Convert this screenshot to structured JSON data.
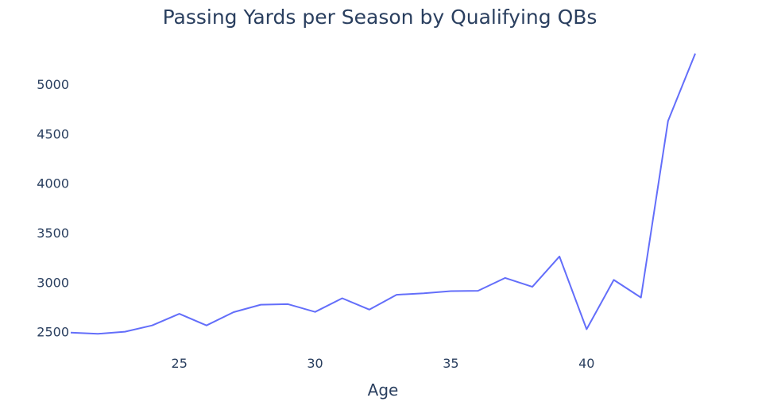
{
  "chart_data": {
    "type": "line",
    "title": "Passing Yards per Season by Qualifying QBs",
    "xlabel": "Age",
    "ylabel": "",
    "xlim": [
      21,
      44
    ],
    "ylim": [
      2320,
      5370
    ],
    "x_ticks": [
      25,
      30,
      35,
      40
    ],
    "y_ticks": [
      2500,
      3000,
      3500,
      4000,
      4500,
      5000
    ],
    "grid": false,
    "line_color": "#636efa",
    "series": [
      {
        "x": [
          21,
          22,
          23,
          24,
          25,
          26,
          27,
          28,
          29,
          30,
          31,
          32,
          33,
          34,
          35,
          36,
          37,
          38,
          39,
          40,
          41,
          42,
          43,
          44
        ],
        "values": [
          2490,
          2478,
          2500,
          2563,
          2680,
          2563,
          2697,
          2773,
          2778,
          2700,
          2838,
          2723,
          2873,
          2888,
          2910,
          2913,
          3043,
          2953,
          3260,
          2525,
          3023,
          2845,
          4630,
          5310
        ]
      }
    ]
  }
}
